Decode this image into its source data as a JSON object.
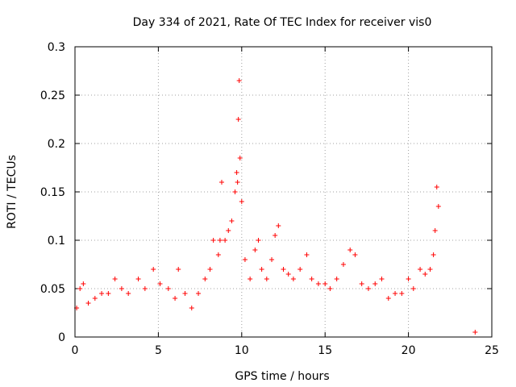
{
  "chart_data": {
    "type": "scatter",
    "title": "Day 334 of 2021, Rate Of TEC Index for receiver vis0",
    "xlabel": "GPS time / hours",
    "ylabel": "ROTI / TECUs",
    "xlim": [
      0,
      25
    ],
    "ylim": [
      0,
      0.3
    ],
    "xticks": [
      "0",
      "5",
      "10",
      "15",
      "20",
      "25"
    ],
    "yticks": [
      "0",
      "0.05",
      "0.1",
      "0.15",
      "0.2",
      "0.25",
      "0.3"
    ],
    "grid": true,
    "marker": "+",
    "color": "#ff0000",
    "series": [
      {
        "x": [
          0.1,
          0.3,
          0.5,
          0.8,
          1.2,
          1.6,
          2.0,
          2.4,
          2.8,
          3.2,
          3.8,
          4.2,
          4.7,
          5.1,
          5.6,
          6.0,
          6.2,
          6.6,
          7.0,
          7.4,
          7.8,
          8.1,
          8.3,
          8.6,
          8.7,
          8.8,
          9.0,
          9.2,
          9.4,
          9.6,
          9.7,
          9.75,
          9.8,
          9.85,
          9.9,
          10.0,
          10.2,
          10.5,
          10.8,
          11.0,
          11.2,
          11.5,
          11.8,
          12.0,
          12.2,
          12.5,
          12.8,
          13.1,
          13.5,
          13.9,
          14.2,
          14.6,
          15.0,
          15.3,
          15.7,
          16.1,
          16.5,
          16.8,
          17.2,
          17.6,
          18.0,
          18.4,
          18.8,
          19.2,
          19.6,
          20.0,
          20.3,
          20.7,
          21.0,
          21.3,
          21.5,
          21.6,
          21.7,
          21.8,
          24.0
        ],
        "y": [
          0.03,
          0.05,
          0.055,
          0.035,
          0.04,
          0.045,
          0.045,
          0.06,
          0.05,
          0.045,
          0.06,
          0.05,
          0.07,
          0.055,
          0.05,
          0.04,
          0.07,
          0.045,
          0.03,
          0.045,
          0.06,
          0.07,
          0.1,
          0.085,
          0.1,
          0.16,
          0.1,
          0.11,
          0.12,
          0.15,
          0.17,
          0.16,
          0.225,
          0.265,
          0.185,
          0.14,
          0.08,
          0.06,
          0.09,
          0.1,
          0.07,
          0.06,
          0.08,
          0.105,
          0.115,
          0.07,
          0.065,
          0.06,
          0.07,
          0.085,
          0.06,
          0.055,
          0.055,
          0.05,
          0.06,
          0.075,
          0.09,
          0.085,
          0.055,
          0.05,
          0.055,
          0.06,
          0.04,
          0.045,
          0.045,
          0.06,
          0.05,
          0.07,
          0.065,
          0.07,
          0.085,
          0.11,
          0.155,
          0.135,
          0.005
        ]
      }
    ]
  }
}
